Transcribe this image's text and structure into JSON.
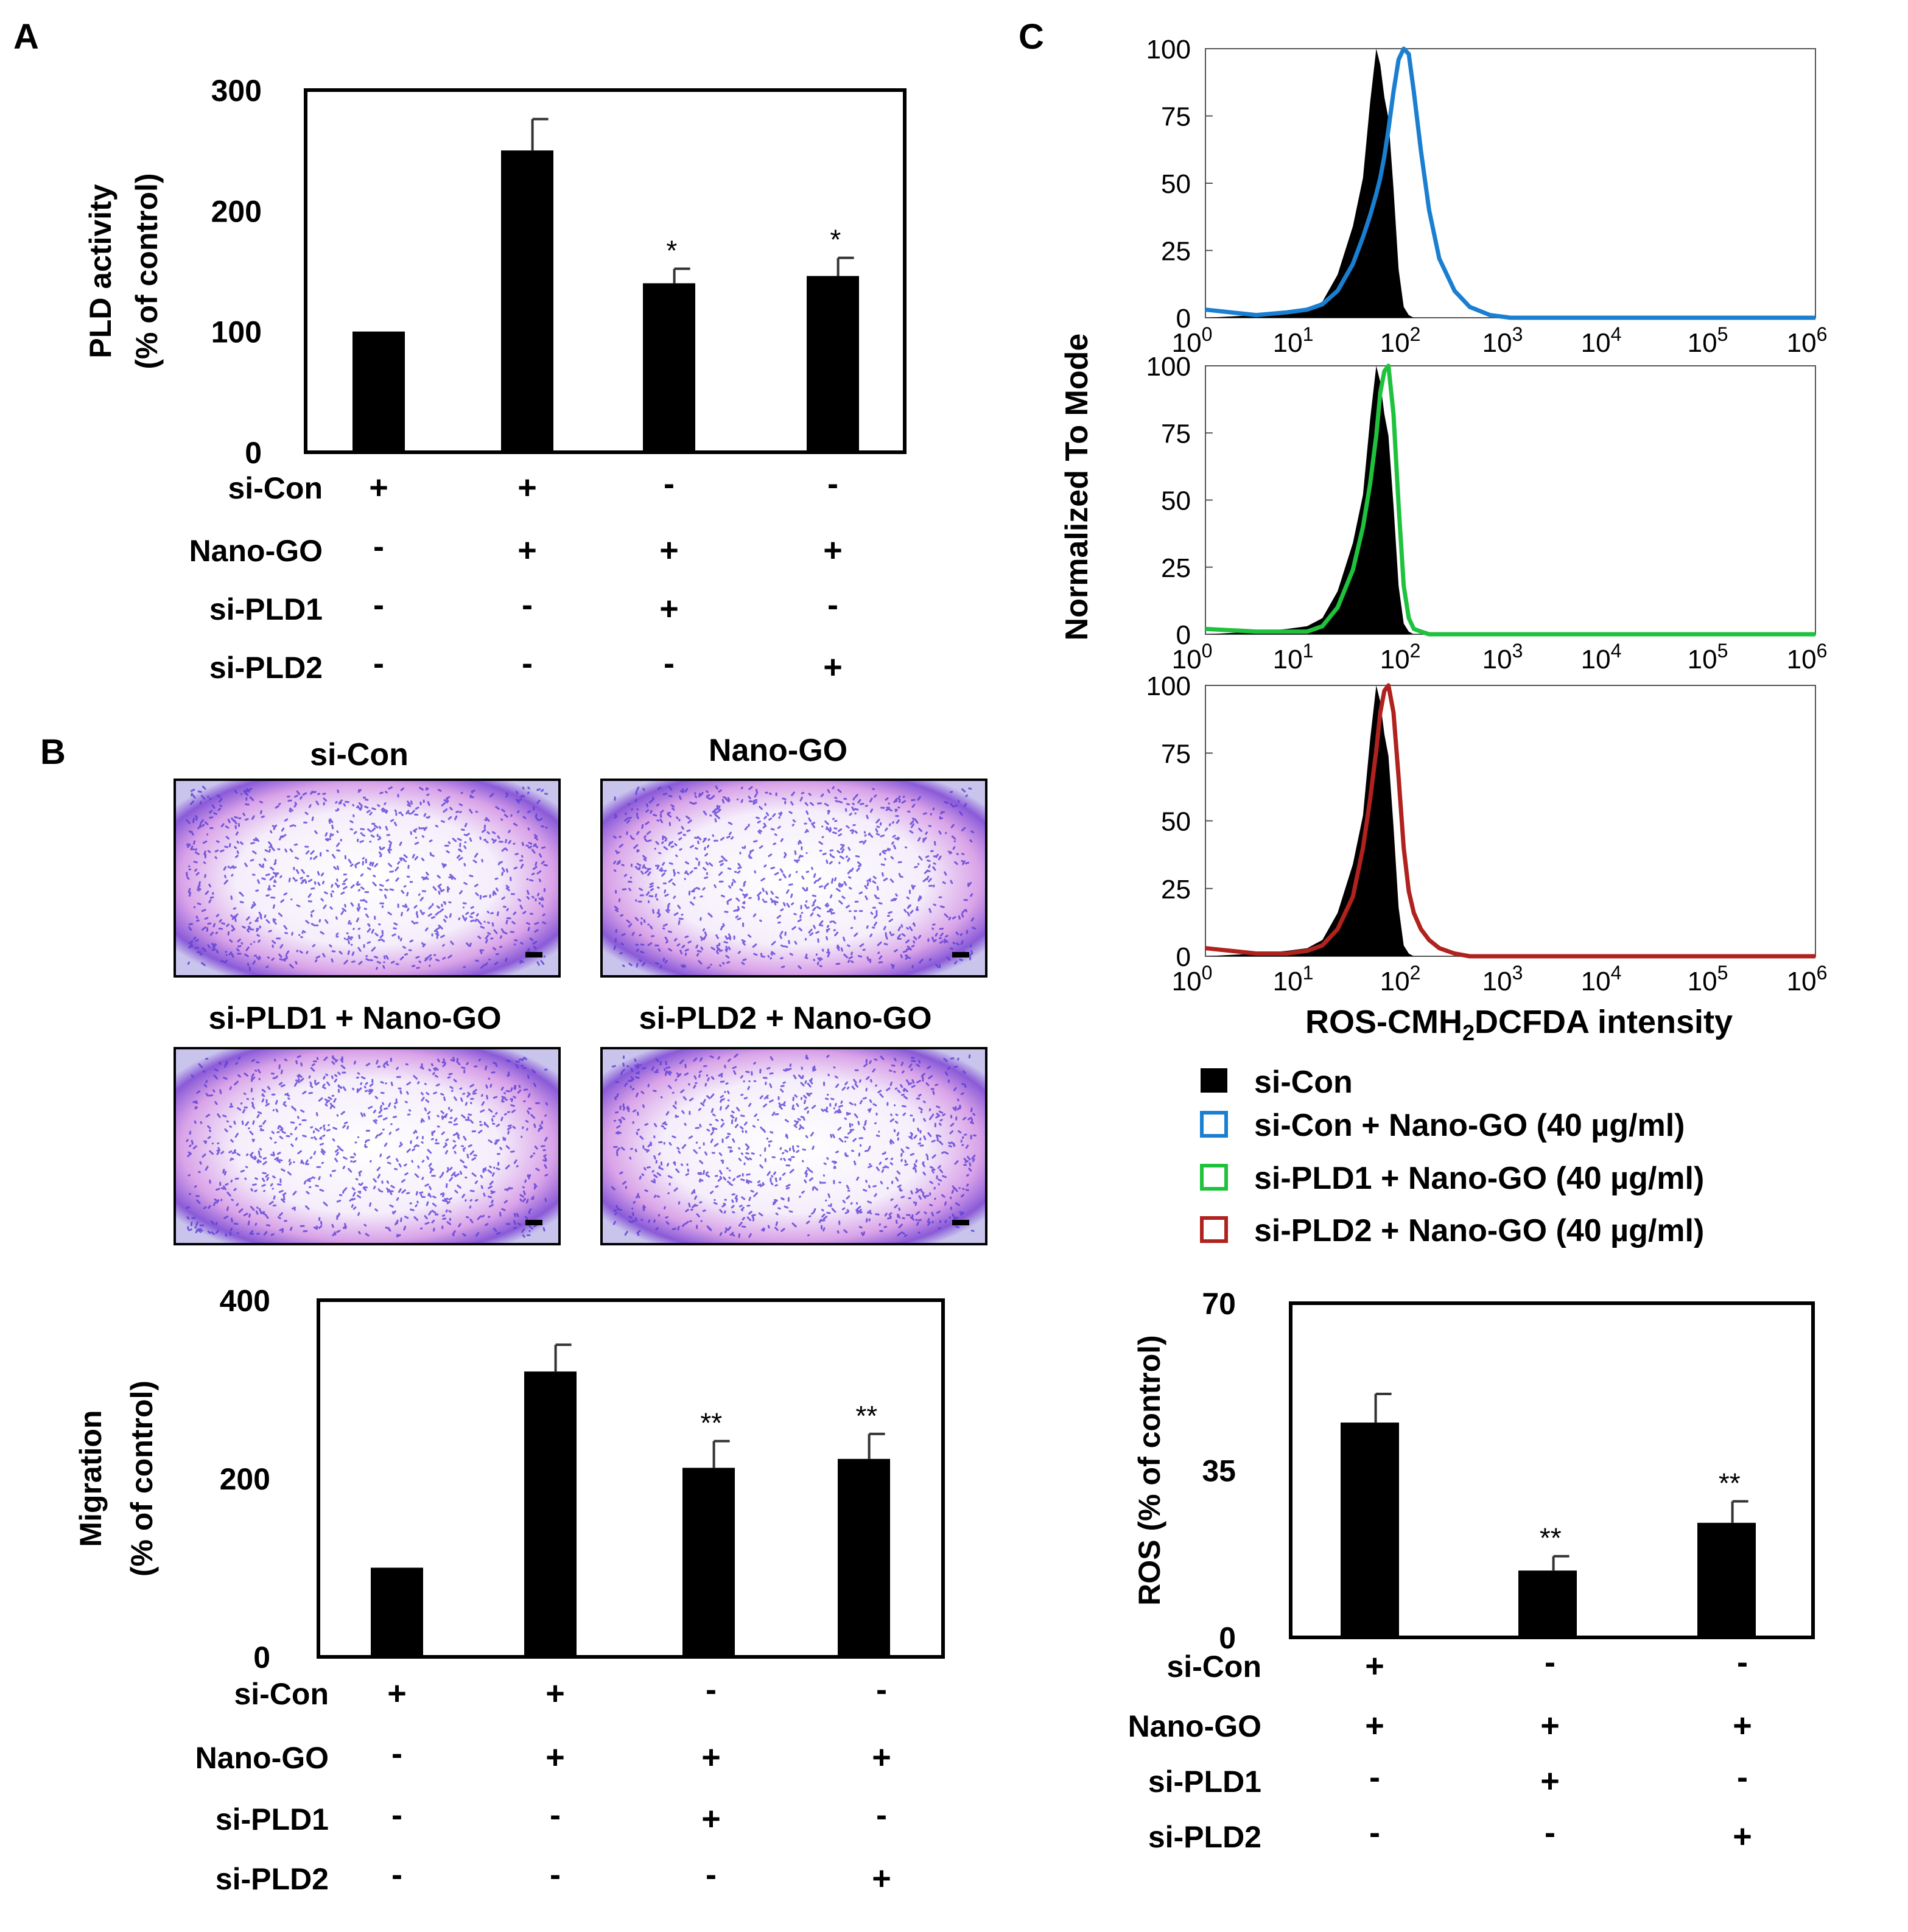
{
  "colors": {
    "bar": "#000000",
    "axis": "#000000",
    "si_con_nano_go": "#1a7fd1",
    "si_pld1_nano_go": "#1fc23c",
    "si_pld2_nano_go": "#b0221e",
    "micrograph_stain": "#5b3fd6"
  },
  "panels": {
    "A": {
      "letter": "A"
    },
    "B": {
      "letter": "B"
    },
    "C": {
      "letter": "C"
    }
  },
  "micrographs": [
    {
      "label": "si-Con"
    },
    {
      "label": "Nano-GO"
    },
    {
      "label": "si-PLD1 + Nano-GO"
    },
    {
      "label": "si-PLD2 + Nano-GO"
    }
  ],
  "condition_rows": [
    {
      "label": "si-Con",
      "signs_4": [
        "+",
        "+",
        "-",
        "-"
      ],
      "signs_3": [
        "+",
        "-",
        "-"
      ]
    },
    {
      "label": "Nano-GO",
      "signs_4": [
        "-",
        "+",
        "+",
        "+"
      ],
      "signs_3": [
        "+",
        "+",
        "+"
      ]
    },
    {
      "label": "si-PLD1",
      "signs_4": [
        "-",
        "-",
        "+",
        "-"
      ],
      "signs_3": [
        "-",
        "+",
        "-"
      ]
    },
    {
      "label": "si-PLD2",
      "signs_4": [
        "-",
        "-",
        "-",
        "+"
      ],
      "signs_3": [
        "-",
        "-",
        "+"
      ]
    }
  ],
  "flow": {
    "ylabel": "Normalized To Mode",
    "xlabel_parts": {
      "pre": "ROS-CMH",
      "sub": "2",
      "post": "DCFDA intensity"
    },
    "ytick_labels": [
      "0",
      "25",
      "50",
      "75",
      "100"
    ],
    "xtick_bases": [
      "10",
      "10",
      "10",
      "10",
      "10",
      "10",
      "10"
    ],
    "xtick_exps": [
      "0",
      "1",
      "2",
      "3",
      "4",
      "5",
      "6"
    ],
    "legend": [
      {
        "label": "si-Con",
        "style": "filled"
      },
      {
        "label": "si-Con + Nano-GO (40 µg/ml)",
        "style": "outline"
      },
      {
        "label": "si-PLD1 + Nano-GO (40 µg/ml)",
        "style": "outline"
      },
      {
        "label": "si-PLD2 + Nano-GO (40 µg/ml)",
        "style": "outline"
      }
    ]
  },
  "chart_data": [
    {
      "id": "A",
      "type": "bar",
      "title": "",
      "ylabel_line1": "PLD activity",
      "ylabel_line2": "(% of control)",
      "ylim": [
        0,
        300
      ],
      "yticks": [
        0,
        100,
        200,
        300
      ],
      "categories": [
        "si-Con",
        "si-Con + Nano-GO",
        "si-PLD1 + Nano-GO",
        "si-PLD2 + Nano-GO"
      ],
      "values": [
        100,
        250,
        140,
        146
      ],
      "errors": [
        1,
        26,
        12,
        15
      ],
      "significance": [
        "",
        "",
        "*",
        "*"
      ]
    },
    {
      "id": "B",
      "type": "bar",
      "title": "",
      "ylabel_line1": "Migration",
      "ylabel_line2": "(% of control)",
      "ylim": [
        0,
        400
      ],
      "yticks": [
        0,
        200,
        400
      ],
      "categories": [
        "si-Con",
        "si-Con + Nano-GO",
        "si-PLD1 + Nano-GO",
        "si-PLD2 + Nano-GO"
      ],
      "values": [
        100,
        320,
        212,
        222
      ],
      "errors": [
        1,
        30,
        30,
        28
      ],
      "significance": [
        "",
        "",
        "**",
        "**"
      ]
    },
    {
      "id": "C-bar",
      "type": "bar",
      "title": "",
      "ylabel_line1": "ROS (% of control)",
      "ylabel_line2": "",
      "ylim": [
        0,
        70
      ],
      "yticks": [
        0,
        35,
        70
      ],
      "categories": [
        "si-Con + Nano-GO",
        "si-PLD1 + Nano-GO",
        "si-PLD2 + Nano-GO"
      ],
      "values": [
        45,
        14,
        24
      ],
      "errors": [
        6,
        3,
        4.5
      ],
      "significance": [
        "",
        "**",
        "**"
      ]
    },
    {
      "id": "C-flow",
      "type": "area",
      "x_scale": "log10",
      "xlim": [
        0,
        6
      ],
      "ylim": [
        0,
        100
      ],
      "xlabel": "ROS-CMH2DCFDA intensity",
      "ylabel": "Normalized To Mode",
      "x_log": [
        0,
        0.5,
        0.8,
        1.0,
        1.15,
        1.3,
        1.45,
        1.55,
        1.62,
        1.68,
        1.72,
        1.76,
        1.8,
        1.85,
        1.9,
        1.95,
        2.0,
        2.05,
        2.12,
        2.2,
        2.3,
        2.45,
        2.6,
        2.8,
        3.0,
        4.0,
        5.0,
        6.0
      ],
      "series": [
        {
          "name": "si-Con",
          "panels": [
            0,
            1,
            2
          ],
          "y": [
            0,
            1,
            2,
            3,
            6,
            16,
            34,
            52,
            80,
            100,
            94,
            82,
            74,
            48,
            18,
            4,
            1,
            0,
            0,
            0,
            0,
            0,
            0,
            0,
            0,
            0,
            0,
            0
          ]
        },
        {
          "name": "si-Con + Nano-GO (40 µg/ml)",
          "panel": 0,
          "y": [
            3,
            1,
            2,
            3,
            5,
            10,
            20,
            30,
            38,
            46,
            52,
            60,
            70,
            84,
            96,
            100,
            98,
            84,
            62,
            40,
            22,
            10,
            4,
            1,
            0,
            0,
            0,
            0
          ]
        },
        {
          "name": "si-PLD1 + Nano-GO (40 µg/ml)",
          "panel": 1,
          "y": [
            2,
            1,
            1,
            1,
            3,
            10,
            24,
            40,
            56,
            74,
            90,
            98,
            100,
            82,
            48,
            18,
            6,
            2,
            1,
            0,
            0,
            0,
            0,
            0,
            0,
            0,
            0,
            0
          ]
        },
        {
          "name": "si-PLD2 + Nano-GO (40 µg/ml)",
          "panel": 2,
          "y": [
            3,
            1,
            1,
            2,
            4,
            10,
            22,
            40,
            58,
            76,
            90,
            98,
            100,
            90,
            66,
            40,
            24,
            16,
            10,
            6,
            3,
            1,
            0,
            0,
            0,
            0,
            0,
            0
          ]
        }
      ]
    }
  ]
}
